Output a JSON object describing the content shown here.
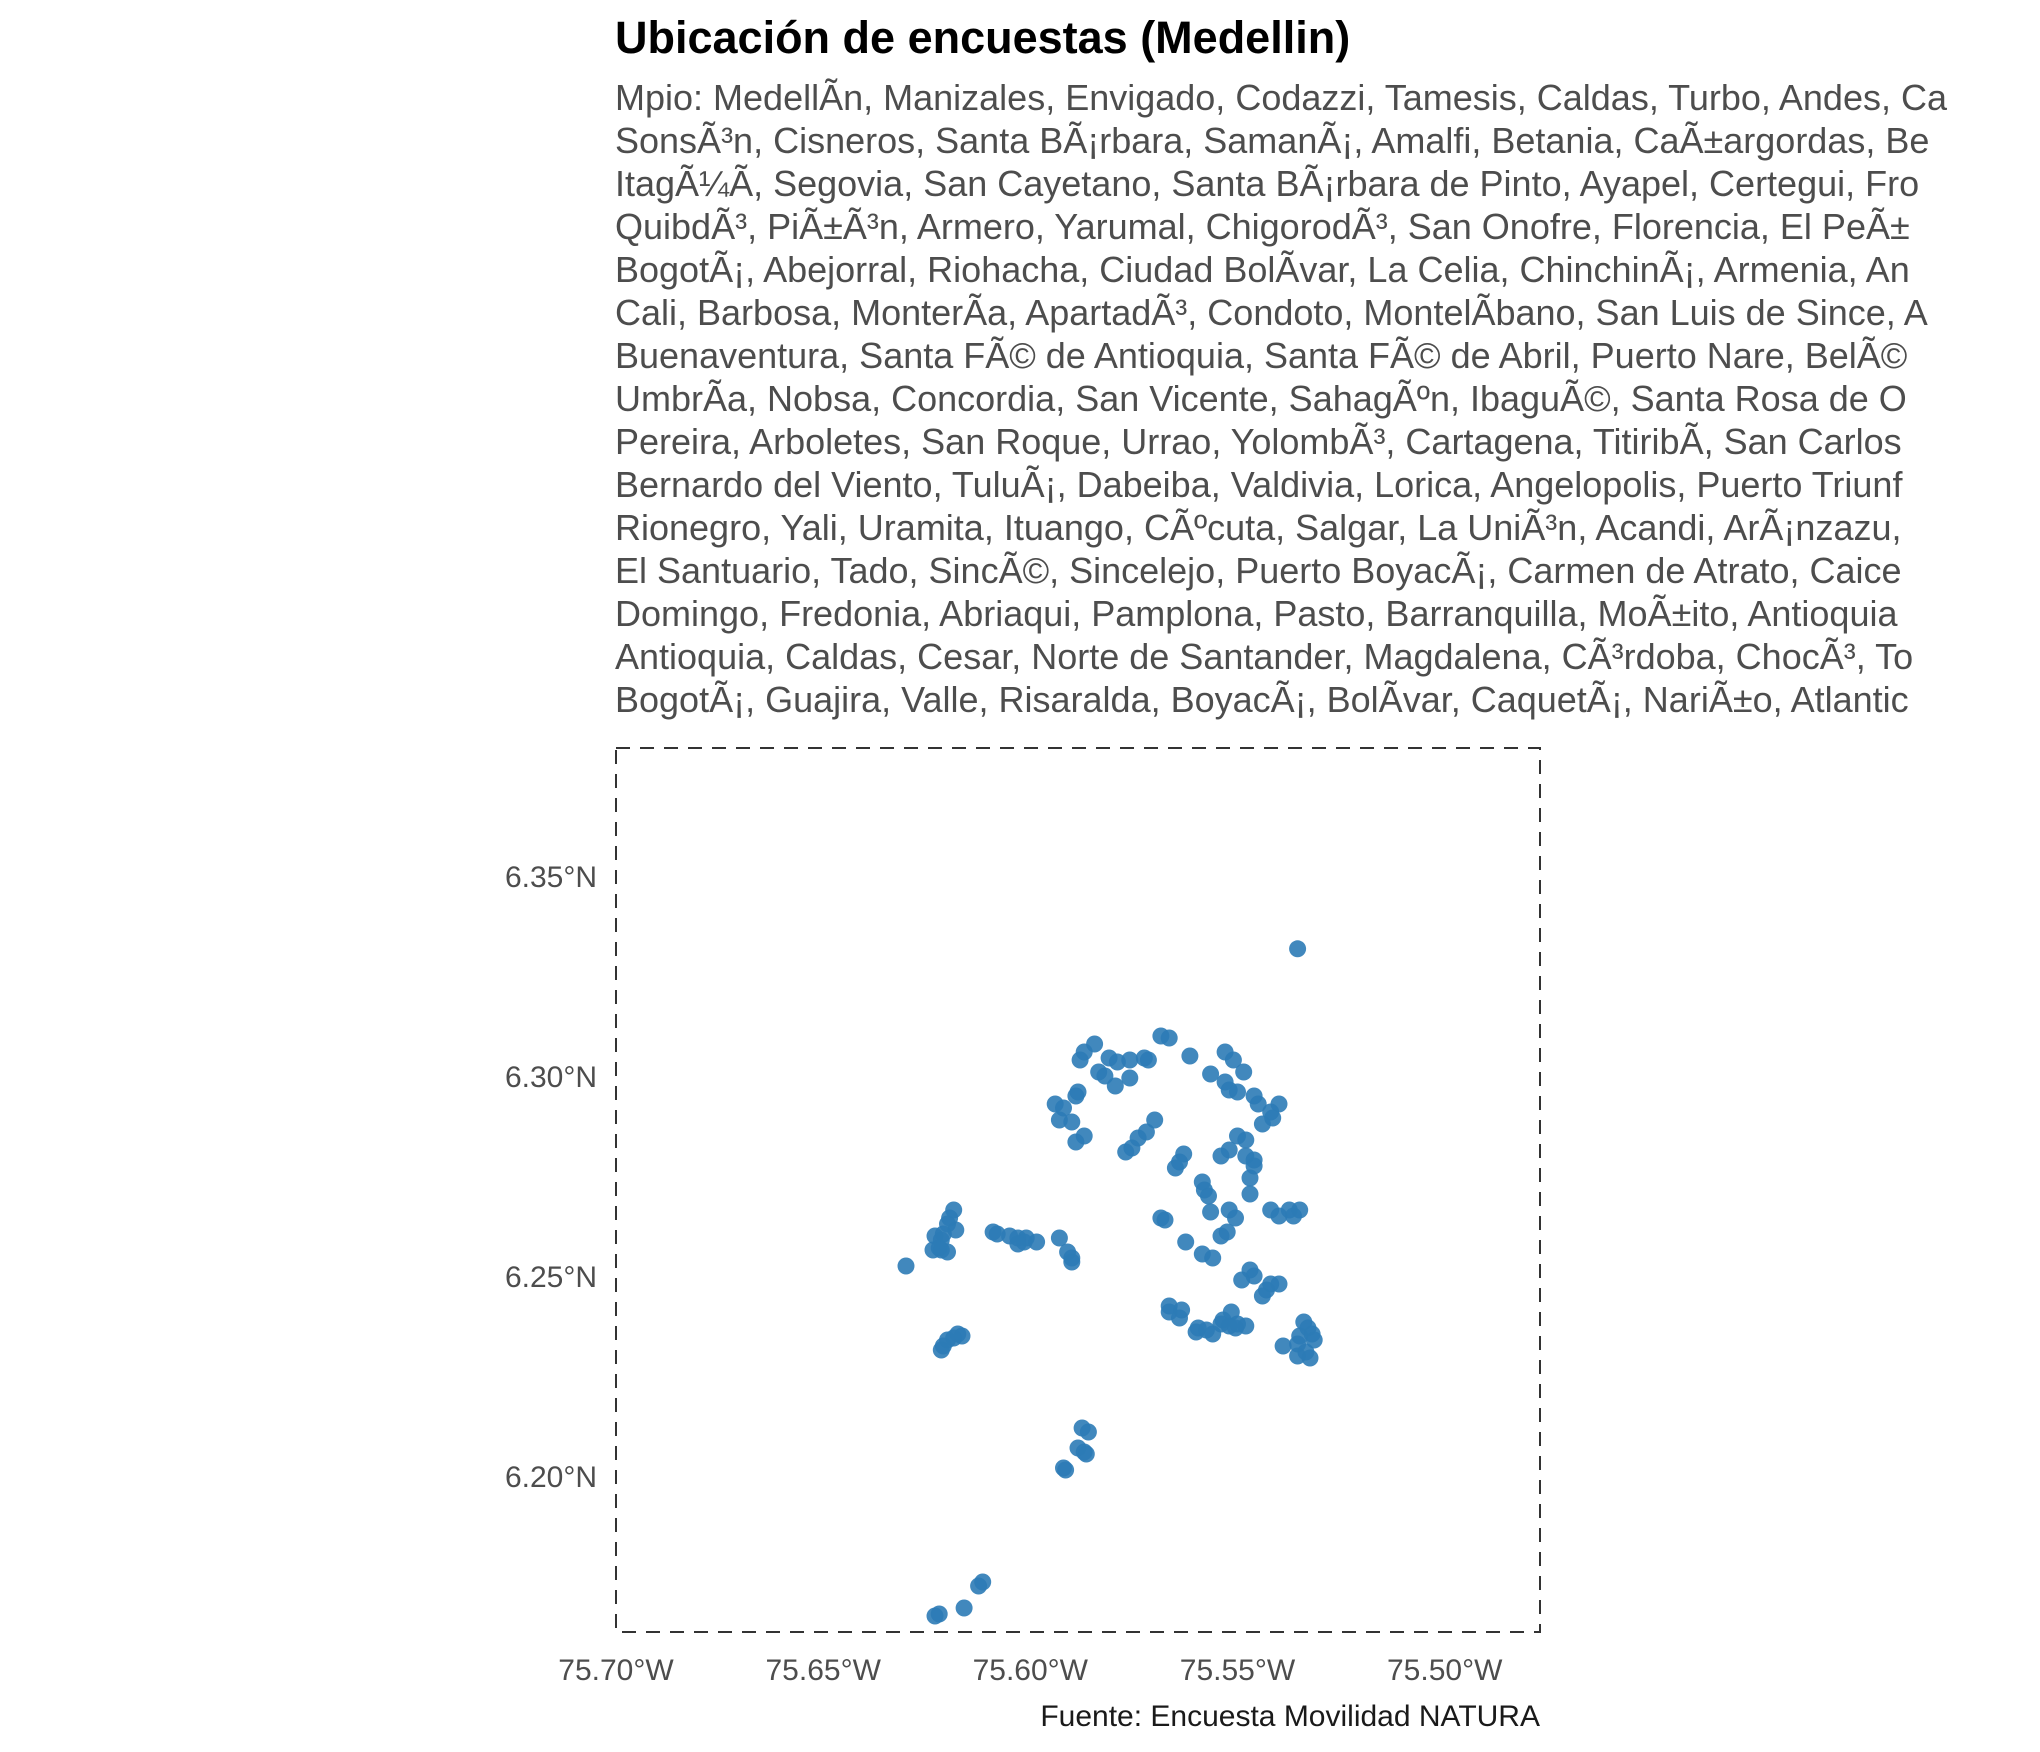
{
  "colors": {
    "point": "#2c7bb6",
    "title": "#000000",
    "subtitle": "#4d4d4d",
    "axis_text": "#4d4d4d",
    "frame": "#333333"
  },
  "chart_data": {
    "type": "scatter",
    "title": "Ubicación de encuestas (Medellin)",
    "subtitle_lines": [
      "Mpio: MedellÃn, Manizales, Envigado, Codazzi, Tamesis, Caldas, Turbo, Andes, Ca",
      "SonsÃ³n, Cisneros, Santa BÃ¡rbara, SamanÃ¡, Amalfi, Betania, CaÃ±argordas, Be",
      "ItagÃ¼Ã, Segovia, San Cayetano, Santa BÃ¡rbara de Pinto, Ayapel, Certegui, Fro",
      "QuibdÃ³, PiÃ±Ã³n, Armero, Yarumal, ChigorodÃ³, San Onofre, Florencia, El PeÃ±",
      "BogotÃ¡, Abejorral, Riohacha, Ciudad BolÃvar, La Celia, ChinchinÃ¡, Armenia, An",
      "Cali, Barbosa, MonterÃa, ApartadÃ³, Condoto, MontelÃbano, San Luis de Since, A",
      "Buenaventura, Santa FÃ© de Antioquia, Santa FÃ© de Abril, Puerto Nare, BelÃ©",
      "UmbrÃa, Nobsa, Concordia, San Vicente, SahagÃºn, IbaguÃ©, Santa Rosa de O",
      "Pereira, Arboletes, San Roque, Urrao, YolombÃ³, Cartagena, TitiribÃ, San Carlos",
      "Bernardo del Viento, TuluÃ¡, Dabeiba, Valdivia, Lorica, Angelopolis, Puerto Triunf",
      "Rionegro, Yali, Uramita, Ituango, CÃºcuta, Salgar, La UniÃ³n, Acandi, ArÃ¡nzazu,",
      "El Santuario, Tado, SincÃ©, Sincelejo, Puerto BoyacÃ¡, Carmen de Atrato, Caice",
      "Domingo, Fredonia, Abriaqui, Pamplona, Pasto, Barranquilla, MoÃ±ito, Antioquia",
      "Antioquia, Caldas, Cesar, Norte de Santander, Magdalena, CÃ³rdoba, ChocÃ³, To",
      "BogotÃ¡, Guajira, Valle, Risaralda, BoyacÃ¡, BolÃvar, CaquetÃ¡, NariÃ±o, Atlantic"
    ],
    "caption": "Fuente: Encuesta Movilidad NATURA",
    "xlabel": "",
    "ylabel": "",
    "xlim": [
      -75.7,
      -75.477
    ],
    "ylim": [
      6.161,
      6.382
    ],
    "x_ticks": [
      {
        "value": -75.7,
        "label": "75.70°W"
      },
      {
        "value": -75.65,
        "label": "75.65°W"
      },
      {
        "value": -75.6,
        "label": "75.60°W"
      },
      {
        "value": -75.55,
        "label": "75.55°W"
      },
      {
        "value": -75.5,
        "label": "75.50°W"
      }
    ],
    "y_ticks": [
      {
        "value": 6.2,
        "label": "6.20°N"
      },
      {
        "value": 6.25,
        "label": "6.25°N"
      },
      {
        "value": 6.3,
        "label": "6.30°N"
      },
      {
        "value": 6.35,
        "label": "6.35°N"
      }
    ],
    "grid": false,
    "legend": "none",
    "frame": "dashed",
    "series": [
      {
        "points": [
          [
            -75.5355,
            6.3318
          ],
          [
            -75.5685,
            6.31
          ],
          [
            -75.5665,
            6.3095
          ],
          [
            -75.5845,
            6.308
          ],
          [
            -75.587,
            6.306
          ],
          [
            -75.588,
            6.304
          ],
          [
            -75.581,
            6.3045
          ],
          [
            -75.579,
            6.3035
          ],
          [
            -75.576,
            6.304
          ],
          [
            -75.5725,
            6.3045
          ],
          [
            -75.5715,
            6.304
          ],
          [
            -75.5835,
            6.301
          ],
          [
            -75.582,
            6.3
          ],
          [
            -75.576,
            6.2995
          ],
          [
            -75.5795,
            6.2975
          ],
          [
            -75.5885,
            6.296
          ],
          [
            -75.589,
            6.295
          ],
          [
            -75.5615,
            6.305
          ],
          [
            -75.553,
            6.306
          ],
          [
            -75.551,
            6.304
          ],
          [
            -75.5485,
            6.301
          ],
          [
            -75.5565,
            6.3005
          ],
          [
            -75.553,
            6.2985
          ],
          [
            -75.552,
            6.2965
          ],
          [
            -75.55,
            6.296
          ],
          [
            -75.546,
            6.295
          ],
          [
            -75.545,
            6.293
          ],
          [
            -75.54,
            6.293
          ],
          [
            -75.542,
            6.291
          ],
          [
            -75.5415,
            6.2895
          ],
          [
            -75.544,
            6.288
          ],
          [
            -75.594,
            6.293
          ],
          [
            -75.592,
            6.292
          ],
          [
            -75.593,
            6.289
          ],
          [
            -75.59,
            6.2885
          ],
          [
            -75.587,
            6.285
          ],
          [
            -75.589,
            6.2835
          ],
          [
            -75.57,
            6.289
          ],
          [
            -75.572,
            6.286
          ],
          [
            -75.574,
            6.2845
          ],
          [
            -75.5755,
            6.282
          ],
          [
            -75.577,
            6.281
          ],
          [
            -75.55,
            6.285
          ],
          [
            -75.548,
            6.284
          ],
          [
            -75.552,
            6.2815
          ],
          [
            -75.554,
            6.28
          ],
          [
            -75.548,
            6.28
          ],
          [
            -75.546,
            6.279
          ],
          [
            -75.546,
            6.2775
          ],
          [
            -75.547,
            6.2745
          ],
          [
            -75.547,
            6.2705
          ],
          [
            -75.563,
            6.2805
          ],
          [
            -75.564,
            6.2785
          ],
          [
            -75.565,
            6.277
          ],
          [
            -75.5585,
            6.2735
          ],
          [
            -75.558,
            6.2715
          ],
          [
            -75.557,
            6.27
          ],
          [
            -75.5565,
            6.266
          ],
          [
            -75.552,
            6.2665
          ],
          [
            -75.5505,
            6.2645
          ],
          [
            -75.542,
            6.2665
          ],
          [
            -75.54,
            6.265
          ],
          [
            -75.5375,
            6.2665
          ],
          [
            -75.5365,
            6.265
          ],
          [
            -75.535,
            6.2665
          ],
          [
            -75.5685,
            6.2645
          ],
          [
            -75.5675,
            6.264
          ],
          [
            -75.5525,
            6.261
          ],
          [
            -75.554,
            6.26
          ],
          [
            -75.5625,
            6.2585
          ],
          [
            -75.5585,
            6.2555
          ],
          [
            -75.556,
            6.2545
          ],
          [
            -75.6185,
            6.2665
          ],
          [
            -75.6195,
            6.2645
          ],
          [
            -75.62,
            6.263
          ],
          [
            -75.618,
            6.2615
          ],
          [
            -75.621,
            6.2605
          ],
          [
            -75.623,
            6.26
          ],
          [
            -75.6215,
            6.259
          ],
          [
            -75.622,
            6.257
          ],
          [
            -75.6235,
            6.2565
          ],
          [
            -75.6215,
            6.2565
          ],
          [
            -75.62,
            6.256
          ],
          [
            -75.609,
            6.261
          ],
          [
            -75.608,
            6.2605
          ],
          [
            -75.605,
            6.26
          ],
          [
            -75.603,
            6.2595
          ],
          [
            -75.601,
            6.2595
          ],
          [
            -75.6015,
            6.2585
          ],
          [
            -75.603,
            6.258
          ],
          [
            -75.5985,
            6.2585
          ],
          [
            -75.593,
            6.2595
          ],
          [
            -75.591,
            6.256
          ],
          [
            -75.59,
            6.2545
          ],
          [
            -75.59,
            6.2535
          ],
          [
            -75.63,
            6.2525
          ],
          [
            -75.547,
            6.2515
          ],
          [
            -75.546,
            6.25
          ],
          [
            -75.549,
            6.249
          ],
          [
            -75.542,
            6.248
          ],
          [
            -75.54,
            6.248
          ],
          [
            -75.543,
            6.2465
          ],
          [
            -75.544,
            6.245
          ],
          [
            -75.5665,
            6.2425
          ],
          [
            -75.5665,
            6.241
          ],
          [
            -75.5635,
            6.2415
          ],
          [
            -75.564,
            6.2395
          ],
          [
            -75.5515,
            6.241
          ],
          [
            -75.5535,
            6.239
          ],
          [
            -75.5595,
            6.237
          ],
          [
            -75.5575,
            6.2365
          ],
          [
            -75.56,
            6.236
          ],
          [
            -75.556,
            6.2355
          ],
          [
            -75.554,
            6.238
          ],
          [
            -75.552,
            6.2375
          ],
          [
            -75.55,
            6.238
          ],
          [
            -75.548,
            6.2375
          ],
          [
            -75.5505,
            6.237
          ],
          [
            -75.534,
            6.2385
          ],
          [
            -75.533,
            6.237
          ],
          [
            -75.532,
            6.2355
          ],
          [
            -75.535,
            6.235
          ],
          [
            -75.5315,
            6.234
          ],
          [
            -75.5355,
            6.233
          ],
          [
            -75.539,
            6.2325
          ],
          [
            -75.5335,
            6.231
          ],
          [
            -75.5355,
            6.23
          ],
          [
            -75.5325,
            6.2295
          ],
          [
            -75.6175,
            6.2355
          ],
          [
            -75.6165,
            6.235
          ],
          [
            -75.6185,
            6.2345
          ],
          [
            -75.62,
            6.234
          ],
          [
            -75.621,
            6.2325
          ],
          [
            -75.6215,
            6.2315
          ],
          [
            -75.5875,
            6.212
          ],
          [
            -75.586,
            6.211
          ],
          [
            -75.5885,
            6.207
          ],
          [
            -75.587,
            6.206
          ],
          [
            -75.5865,
            6.2055
          ],
          [
            -75.592,
            6.202
          ],
          [
            -75.5915,
            6.2015
          ],
          [
            -75.6115,
            6.1735
          ],
          [
            -75.6125,
            6.1725
          ],
          [
            -75.616,
            6.167
          ],
          [
            -75.622,
            6.1655
          ],
          [
            -75.623,
            6.165
          ]
        ]
      }
    ]
  }
}
